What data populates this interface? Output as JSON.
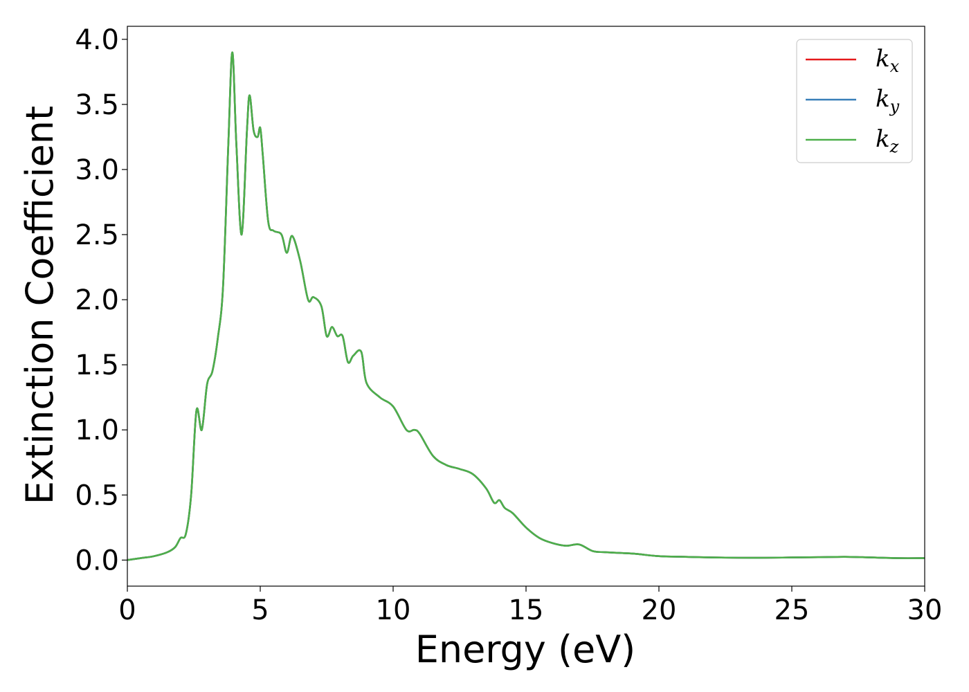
{
  "chart_data": {
    "type": "line",
    "xlabel": "Energy (eV)",
    "ylabel": "Extinction Coefficient",
    "xlim": [
      0,
      30
    ],
    "ylim": [
      -0.2,
      4.1
    ],
    "x_ticks": [
      0,
      5,
      10,
      15,
      20,
      25,
      30
    ],
    "x_tick_labels": [
      "0",
      "5",
      "10",
      "15",
      "20",
      "25",
      "30"
    ],
    "y_ticks": [
      0.0,
      0.5,
      1.0,
      1.5,
      2.0,
      2.5,
      3.0,
      3.5,
      4.0
    ],
    "y_tick_labels": [
      "0.0",
      "0.5",
      "1.0",
      "1.5",
      "2.0",
      "2.5",
      "3.0",
      "3.5",
      "4.0"
    ],
    "grid": false,
    "legend_position": "top-right",
    "series": [
      {
        "name": "k_x",
        "base": "k",
        "sub": "x",
        "color": "#e41a1c",
        "x": [
          0,
          0.5,
          1.0,
          1.5,
          1.8,
          2.0,
          2.2,
          2.4,
          2.6,
          2.8,
          3.0,
          3.2,
          3.4,
          3.6,
          3.8,
          3.95,
          4.1,
          4.3,
          4.5,
          4.6,
          4.75,
          4.9,
          5.0,
          5.1,
          5.3,
          5.5,
          5.8,
          6.0,
          6.2,
          6.5,
          6.8,
          7.0,
          7.3,
          7.5,
          7.7,
          7.9,
          8.1,
          8.3,
          8.5,
          8.8,
          9.0,
          9.5,
          10.0,
          10.5,
          10.8,
          11.0,
          11.5,
          12.0,
          12.5,
          13.0,
          13.5,
          13.8,
          14.0,
          14.2,
          14.5,
          15.0,
          15.5,
          16.0,
          16.5,
          17.0,
          17.5,
          18.0,
          19.0,
          20.0,
          21.0,
          22.0,
          23.0,
          24.0,
          25.0,
          26.0,
          27.0,
          28.0,
          29.0,
          30.0
        ],
        "y": [
          0.0,
          0.015,
          0.03,
          0.06,
          0.1,
          0.17,
          0.2,
          0.5,
          1.15,
          1.0,
          1.35,
          1.45,
          1.7,
          2.1,
          3.2,
          3.9,
          3.2,
          2.5,
          3.3,
          3.57,
          3.3,
          3.25,
          3.32,
          3.1,
          2.6,
          2.53,
          2.5,
          2.36,
          2.49,
          2.3,
          2.0,
          2.02,
          1.95,
          1.72,
          1.79,
          1.72,
          1.72,
          1.52,
          1.57,
          1.6,
          1.36,
          1.25,
          1.18,
          1.0,
          1.0,
          0.97,
          0.8,
          0.73,
          0.7,
          0.66,
          0.55,
          0.44,
          0.46,
          0.4,
          0.36,
          0.25,
          0.17,
          0.13,
          0.11,
          0.12,
          0.07,
          0.06,
          0.05,
          0.03,
          0.025,
          0.02,
          0.018,
          0.018,
          0.02,
          0.022,
          0.025,
          0.02,
          0.015,
          0.015
        ]
      },
      {
        "name": "k_y",
        "base": "k",
        "sub": "y",
        "color": "#377eb8",
        "x": [
          0,
          0.5,
          1.0,
          1.5,
          1.8,
          2.0,
          2.2,
          2.4,
          2.6,
          2.8,
          3.0,
          3.2,
          3.4,
          3.6,
          3.8,
          3.95,
          4.1,
          4.3,
          4.5,
          4.6,
          4.75,
          4.9,
          5.0,
          5.1,
          5.3,
          5.5,
          5.8,
          6.0,
          6.2,
          6.5,
          6.8,
          7.0,
          7.3,
          7.5,
          7.7,
          7.9,
          8.1,
          8.3,
          8.5,
          8.8,
          9.0,
          9.5,
          10.0,
          10.5,
          10.8,
          11.0,
          11.5,
          12.0,
          12.5,
          13.0,
          13.5,
          13.8,
          14.0,
          14.2,
          14.5,
          15.0,
          15.5,
          16.0,
          16.5,
          17.0,
          17.5,
          18.0,
          19.0,
          20.0,
          21.0,
          22.0,
          23.0,
          24.0,
          25.0,
          26.0,
          27.0,
          28.0,
          29.0,
          30.0
        ],
        "y": [
          0.0,
          0.015,
          0.03,
          0.06,
          0.1,
          0.17,
          0.2,
          0.5,
          1.15,
          1.0,
          1.35,
          1.45,
          1.7,
          2.1,
          3.2,
          3.9,
          3.2,
          2.5,
          3.3,
          3.57,
          3.3,
          3.25,
          3.32,
          3.1,
          2.6,
          2.53,
          2.5,
          2.36,
          2.49,
          2.3,
          2.0,
          2.02,
          1.95,
          1.72,
          1.79,
          1.72,
          1.72,
          1.52,
          1.57,
          1.6,
          1.36,
          1.25,
          1.18,
          1.0,
          1.0,
          0.97,
          0.8,
          0.73,
          0.7,
          0.66,
          0.55,
          0.44,
          0.46,
          0.4,
          0.36,
          0.25,
          0.17,
          0.13,
          0.11,
          0.12,
          0.07,
          0.06,
          0.05,
          0.03,
          0.025,
          0.02,
          0.018,
          0.018,
          0.02,
          0.022,
          0.025,
          0.02,
          0.015,
          0.015
        ]
      },
      {
        "name": "k_z",
        "base": "k",
        "sub": "z",
        "color": "#4daf4a",
        "x": [
          0,
          0.5,
          1.0,
          1.5,
          1.8,
          2.0,
          2.2,
          2.4,
          2.6,
          2.8,
          3.0,
          3.2,
          3.4,
          3.6,
          3.8,
          3.95,
          4.1,
          4.3,
          4.5,
          4.6,
          4.75,
          4.9,
          5.0,
          5.1,
          5.3,
          5.5,
          5.8,
          6.0,
          6.2,
          6.5,
          6.8,
          7.0,
          7.3,
          7.5,
          7.7,
          7.9,
          8.1,
          8.3,
          8.5,
          8.8,
          9.0,
          9.5,
          10.0,
          10.5,
          10.8,
          11.0,
          11.5,
          12.0,
          12.5,
          13.0,
          13.5,
          13.8,
          14.0,
          14.2,
          14.5,
          15.0,
          15.5,
          16.0,
          16.5,
          17.0,
          17.5,
          18.0,
          19.0,
          20.0,
          21.0,
          22.0,
          23.0,
          24.0,
          25.0,
          26.0,
          27.0,
          28.0,
          29.0,
          30.0
        ],
        "y": [
          0.0,
          0.015,
          0.03,
          0.06,
          0.1,
          0.17,
          0.2,
          0.5,
          1.15,
          1.0,
          1.35,
          1.45,
          1.7,
          2.1,
          3.2,
          3.9,
          3.2,
          2.5,
          3.3,
          3.57,
          3.3,
          3.25,
          3.32,
          3.1,
          2.6,
          2.53,
          2.5,
          2.36,
          2.49,
          2.3,
          2.0,
          2.02,
          1.95,
          1.72,
          1.79,
          1.72,
          1.72,
          1.52,
          1.57,
          1.6,
          1.36,
          1.25,
          1.18,
          1.0,
          1.0,
          0.97,
          0.8,
          0.73,
          0.7,
          0.66,
          0.55,
          0.44,
          0.46,
          0.4,
          0.36,
          0.25,
          0.17,
          0.13,
          0.11,
          0.12,
          0.07,
          0.06,
          0.05,
          0.03,
          0.025,
          0.02,
          0.018,
          0.018,
          0.02,
          0.022,
          0.025,
          0.02,
          0.015,
          0.015
        ]
      }
    ]
  }
}
